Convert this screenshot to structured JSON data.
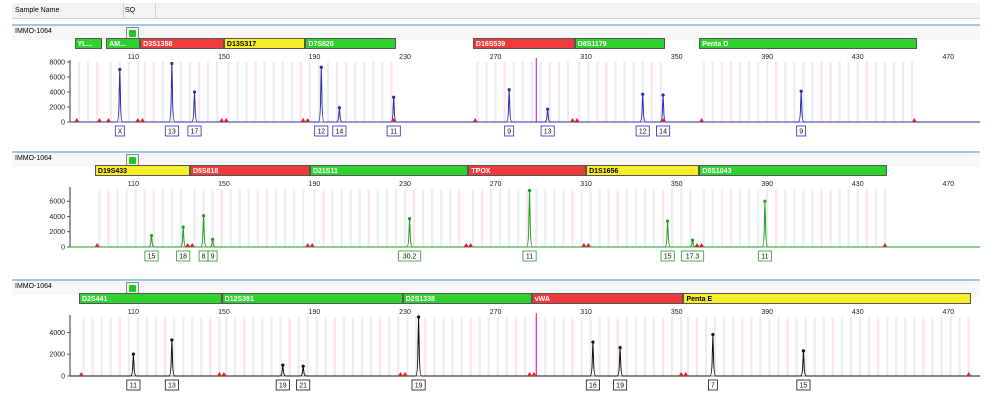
{
  "header": {
    "sample_name": "Sample Name",
    "sq": "SQ"
  },
  "colors": {
    "blue": "#2b2bb0",
    "green": "#1e9e1e",
    "black": "#111111",
    "marker_green": "#2ed12e",
    "marker_red": "#ef3b3b",
    "marker_yellow": "#f7ef2a",
    "stutter": "#e62020",
    "cursor": "#cc33cc"
  },
  "chart_data": [
    {
      "type": "line",
      "sample": "IMMO-1064",
      "dye": "blue",
      "x_ticks": [
        110,
        150,
        190,
        230,
        270,
        310,
        350,
        390,
        430,
        470
      ],
      "y_ticks": [
        0,
        2000,
        4000,
        6000,
        8000
      ],
      "ylim": [
        0,
        8000
      ],
      "xlim": [
        82,
        484
      ],
      "cursor": 288,
      "markers": [
        {
          "name": "YL...",
          "start": 84,
          "end": 96,
          "color": "green"
        },
        {
          "name": "AM...",
          "start": 98,
          "end": 113,
          "color": "green"
        },
        {
          "name": "D3S1358",
          "start": 113,
          "end": 150,
          "color": "red"
        },
        {
          "name": "D13S317",
          "start": 150,
          "end": 186,
          "color": "yellow"
        },
        {
          "name": "D7S820",
          "start": 186,
          "end": 226,
          "color": "green"
        },
        {
          "name": "D16S539",
          "start": 260,
          "end": 305,
          "color": "red"
        },
        {
          "name": "D8S1179",
          "start": 305,
          "end": 345,
          "color": "green"
        },
        {
          "name": "Penta D",
          "start": 360,
          "end": 456,
          "color": "green"
        }
      ],
      "peaks": [
        {
          "x": 104,
          "h": 7000,
          "label": "X"
        },
        {
          "x": 127,
          "h": 7800,
          "label": "13"
        },
        {
          "x": 137,
          "h": 4000,
          "label": "17"
        },
        {
          "x": 193,
          "h": 7300,
          "label": "12"
        },
        {
          "x": 201,
          "h": 1900,
          "label": "14"
        },
        {
          "x": 225,
          "h": 3300,
          "label": "11"
        },
        {
          "x": 276,
          "h": 4300,
          "label": "9"
        },
        {
          "x": 293,
          "h": 1700,
          "label": "13"
        },
        {
          "x": 335,
          "h": 3700,
          "label": "12"
        },
        {
          "x": 344,
          "h": 3600,
          "label": "14"
        },
        {
          "x": 405,
          "h": 4100,
          "label": "9"
        }
      ]
    },
    {
      "type": "line",
      "sample": "IMMO-1064",
      "dye": "green",
      "x_ticks": [
        110,
        150,
        190,
        230,
        270,
        310,
        350,
        390,
        430,
        470
      ],
      "y_ticks": [
        0,
        2000,
        4000,
        6000
      ],
      "ylim": [
        0,
        7600
      ],
      "xlim": [
        82,
        484
      ],
      "markers": [
        {
          "name": "D19S433",
          "start": 93,
          "end": 135,
          "color": "yellow"
        },
        {
          "name": "D5S818",
          "start": 135,
          "end": 188,
          "color": "red"
        },
        {
          "name": "D21S11",
          "start": 188,
          "end": 258,
          "color": "green"
        },
        {
          "name": "TPOX",
          "start": 258,
          "end": 310,
          "color": "red"
        },
        {
          "name": "D1S1656",
          "start": 310,
          "end": 360,
          "color": "yellow"
        },
        {
          "name": "D6S1043",
          "start": 360,
          "end": 443,
          "color": "green"
        }
      ],
      "peaks": [
        {
          "x": 118,
          "h": 1500,
          "label": "15"
        },
        {
          "x": 132,
          "h": 2600,
          "label": "18"
        },
        {
          "x": 141,
          "h": 4100,
          "label": "8"
        },
        {
          "x": 145,
          "h": 1000,
          "label": "9"
        },
        {
          "x": 232,
          "h": 3700,
          "label": "30.2"
        },
        {
          "x": 285,
          "h": 7400,
          "label": "11"
        },
        {
          "x": 346,
          "h": 3400,
          "label": "15"
        },
        {
          "x": 357,
          "h": 900,
          "label": "17.3"
        },
        {
          "x": 389,
          "h": 6000,
          "label": "11"
        }
      ]
    },
    {
      "type": "line",
      "sample": "IMMO-1064",
      "dye": "black",
      "x_ticks": [
        110,
        150,
        190,
        230,
        270,
        310,
        350,
        390,
        430,
        470
      ],
      "y_ticks": [
        0,
        2000,
        4000
      ],
      "ylim": [
        0,
        5400
      ],
      "xlim": [
        82,
        484
      ],
      "cursor": 288,
      "markers": [
        {
          "name": "D2S441",
          "start": 86,
          "end": 149,
          "color": "green"
        },
        {
          "name": "D12S391",
          "start": 149,
          "end": 229,
          "color": "green"
        },
        {
          "name": "D2S1338",
          "start": 229,
          "end": 286,
          "color": "green"
        },
        {
          "name": "vWA",
          "start": 286,
          "end": 353,
          "color": "red"
        },
        {
          "name": "Penta E",
          "start": 353,
          "end": 480,
          "color": "yellow"
        }
      ],
      "peaks": [
        {
          "x": 110,
          "h": 2000,
          "label": "11"
        },
        {
          "x": 127,
          "h": 3300,
          "label": "13"
        },
        {
          "x": 176,
          "h": 1000,
          "label": "19"
        },
        {
          "x": 185,
          "h": 900,
          "label": "21"
        },
        {
          "x": 236,
          "h": 5400,
          "label": "19"
        },
        {
          "x": 313,
          "h": 3100,
          "label": "16"
        },
        {
          "x": 325,
          "h": 2600,
          "label": "19"
        },
        {
          "x": 366,
          "h": 3800,
          "label": "7"
        },
        {
          "x": 406,
          "h": 2300,
          "label": "15"
        }
      ]
    }
  ]
}
